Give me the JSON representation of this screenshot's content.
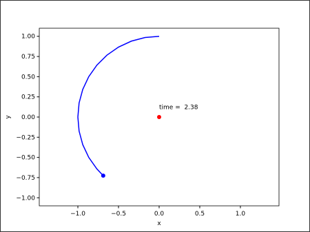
{
  "chart_data": {
    "type": "line",
    "xlabel": "x",
    "ylabel": "y",
    "xlim": [
      -1.475,
      1.475
    ],
    "ylim": [
      -1.1,
      1.1
    ],
    "xticks": [
      {
        "value": -1,
        "label": "−1.0"
      },
      {
        "value": -0.5,
        "label": "−0.5"
      },
      {
        "value": 0,
        "label": "0.0"
      },
      {
        "value": 0.5,
        "label": "0.5"
      },
      {
        "value": 1,
        "label": "1.0"
      }
    ],
    "yticks": [
      {
        "value": -1,
        "label": "−1.00"
      },
      {
        "value": -0.75,
        "label": "−0.75"
      },
      {
        "value": -0.5,
        "label": "−0.50"
      },
      {
        "value": -0.25,
        "label": "−0.25"
      },
      {
        "value": 0,
        "label": "0.00"
      },
      {
        "value": 0.25,
        "label": "0.25"
      },
      {
        "value": 0.5,
        "label": "0.50"
      },
      {
        "value": 0.75,
        "label": "0.75"
      },
      {
        "value": 1,
        "label": "1.00"
      }
    ],
    "grid": false,
    "series": [
      {
        "mode": "line",
        "color": "#0000ff",
        "x": [
          0,
          -0.174,
          -0.342,
          -0.5,
          -0.643,
          -0.766,
          -0.866,
          -0.94,
          -0.985,
          -1,
          -0.985,
          -0.94,
          -0.866,
          -0.766,
          -0.688
        ],
        "values": [
          1,
          0.985,
          0.94,
          0.866,
          0.766,
          0.643,
          0.5,
          0.342,
          0.174,
          0,
          -0.174,
          -0.342,
          -0.5,
          -0.643,
          -0.726
        ]
      },
      {
        "mode": "point",
        "color": "#0000ff",
        "x": [
          -0.688
        ],
        "values": [
          -0.726
        ]
      },
      {
        "mode": "point",
        "color": "#ff0000",
        "x": [
          0
        ],
        "values": [
          0
        ]
      }
    ],
    "annotations": [
      {
        "text": "time =  2.38",
        "x": 0,
        "y": 0.1
      }
    ]
  }
}
